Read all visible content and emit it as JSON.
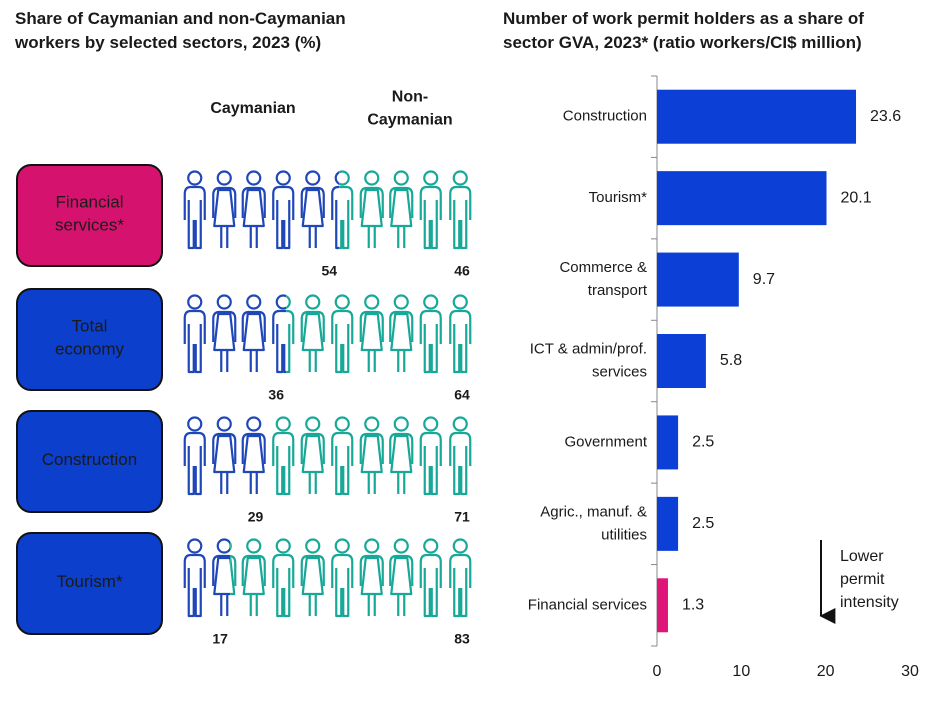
{
  "chart_data": [
    {
      "type": "pictogram",
      "title": "Share of Caymanian and non-Caymanian workers by selected sectors, 2023 (%)",
      "columns": [
        "Caymanian",
        "Non-Caymanian"
      ],
      "categories": [
        "Financial services*",
        "Total economy",
        "Construction",
        "Tourism*"
      ],
      "category_colors": [
        "#d6126f",
        "#0b3fcc",
        "#0b3fcc",
        "#0b3fcc"
      ],
      "series": [
        {
          "name": "Caymanian",
          "color": "#1f47b8",
          "values": [
            54,
            36,
            29,
            17
          ]
        },
        {
          "name": "Non-Caymanian",
          "color": "#17a898",
          "values": [
            46,
            64,
            71,
            83
          ]
        }
      ]
    },
    {
      "type": "hbar",
      "title": "Number of work permit holders as a share of sector GVA, 2023* (ratio workers/CI$ million)",
      "categories": [
        "Construction",
        "Tourism*",
        "Commerce & transport",
        "ICT & admin/prof. services",
        "Government",
        "Agric., manuf. & utilities",
        "Financial services"
      ],
      "values": [
        23.6,
        20.1,
        9.7,
        5.8,
        2.5,
        2.5,
        1.3
      ],
      "colors": [
        "#0b3fd6",
        "#0b3fd6",
        "#0b3fd6",
        "#0b3fd6",
        "#0b3fd6",
        "#0b3fd6",
        "#e0157a"
      ],
      "xlim": [
        0,
        30
      ],
      "xticks": [
        0,
        10,
        20,
        30
      ],
      "annotation": "Lower permit intensity"
    }
  ]
}
